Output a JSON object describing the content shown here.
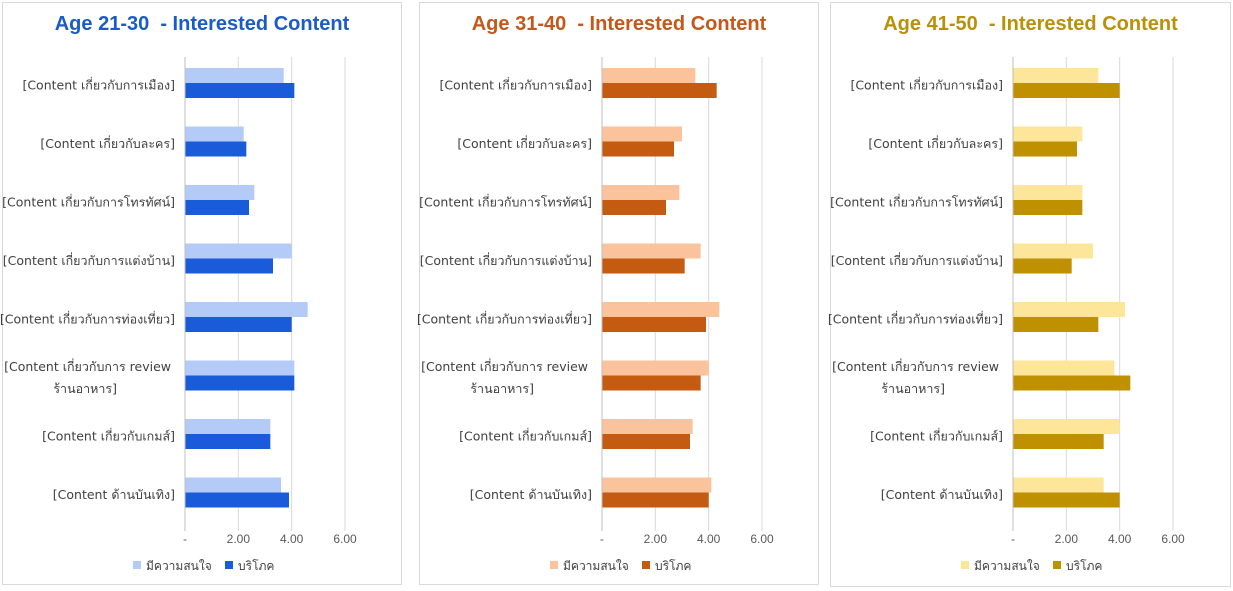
{
  "chart_data": [
    {
      "type": "bar",
      "orientation": "horizontal",
      "title": "Age 21-30  - Interested Content",
      "title_color": "#1a5bc7",
      "categories": [
        "[Content เกี่ยวกับการเมือง]",
        "[Content เกี่ยวกับละคร]",
        "[Content เกี่ยวกับการโทรทัศน์]",
        "[Content เกี่ยวกับการแต่งบ้าน]",
        "[Content เกี่ยวกับการท่องเที่ยว]",
        "[Content เกี่ยวกับการ review ร้านอาหาร]",
        "[Content เกี่ยวกับเกมส์]",
        "[Content ด้านบันเทิง]"
      ],
      "series": [
        {
          "name": "มีความสนใจ",
          "color": "#b4cbf7",
          "values": [
            3.7,
            2.2,
            2.6,
            4.0,
            4.6,
            4.1,
            3.2,
            3.6
          ]
        },
        {
          "name": "บริโภค",
          "color": "#1a5bd9",
          "values": [
            4.1,
            2.3,
            2.4,
            3.3,
            4.0,
            4.1,
            3.2,
            3.9
          ]
        }
      ],
      "xlim": [
        0,
        6
      ],
      "xticks": [
        "-",
        "2.00",
        "4.00",
        "6.00"
      ],
      "grid": true,
      "legend_position": "bottom"
    },
    {
      "type": "bar",
      "orientation": "horizontal",
      "title": "Age 31-40  - Interested Content",
      "title_color": "#c4581a",
      "categories": [
        "[Content เกี่ยวกับการเมือง]",
        "[Content เกี่ยวกับละคร]",
        "[Content เกี่ยวกับการโทรทัศน์]",
        "[Content เกี่ยวกับการแต่งบ้าน]",
        "[Content เกี่ยวกับการท่องเที่ยว]",
        "[Content เกี่ยวกับการ review ร้านอาหาร]",
        "[Content เกี่ยวกับเกมส์]",
        "[Content ด้านบันเทิง]"
      ],
      "series": [
        {
          "name": "มีความสนใจ",
          "color": "#fbc39b",
          "values": [
            3.5,
            3.0,
            2.9,
            3.7,
            4.4,
            4.0,
            3.4,
            4.1
          ]
        },
        {
          "name": "บริโภค",
          "color": "#c55a11",
          "values": [
            4.3,
            2.7,
            2.4,
            3.1,
            3.9,
            3.7,
            3.3,
            4.0
          ]
        }
      ],
      "xlim": [
        0,
        6
      ],
      "xticks": [
        "-",
        "2.00",
        "4.00",
        "6.00"
      ],
      "grid": true,
      "legend_position": "bottom"
    },
    {
      "type": "bar",
      "orientation": "horizontal",
      "title": "Age 41-50  - Interested Content",
      "title_color": "#b8900a",
      "categories": [
        "[Content เกี่ยวกับการเมือง]",
        "[Content เกี่ยวกับละคร]",
        "[Content เกี่ยวกับการโทรทัศน์]",
        "[Content เกี่ยวกับการแต่งบ้าน]",
        "[Content เกี่ยวกับการท่องเที่ยว]",
        "[Content เกี่ยวกับการ review ร้านอาหาร]",
        "[Content เกี่ยวกับเกมส์]",
        "[Content ด้านบันเทิง]"
      ],
      "series": [
        {
          "name": "มีความสนใจ",
          "color": "#fde69a",
          "values": [
            3.2,
            2.6,
            2.6,
            3.0,
            4.2,
            3.8,
            4.0,
            3.4
          ]
        },
        {
          "name": "บริโภค",
          "color": "#bf9000",
          "values": [
            4.0,
            2.4,
            2.6,
            2.2,
            3.2,
            4.4,
            3.4,
            4.0
          ]
        }
      ],
      "xlim": [
        0,
        6
      ],
      "xticks": [
        "-",
        "2.00",
        "4.00",
        "6.00"
      ],
      "grid": true,
      "legend_position": "bottom"
    }
  ]
}
